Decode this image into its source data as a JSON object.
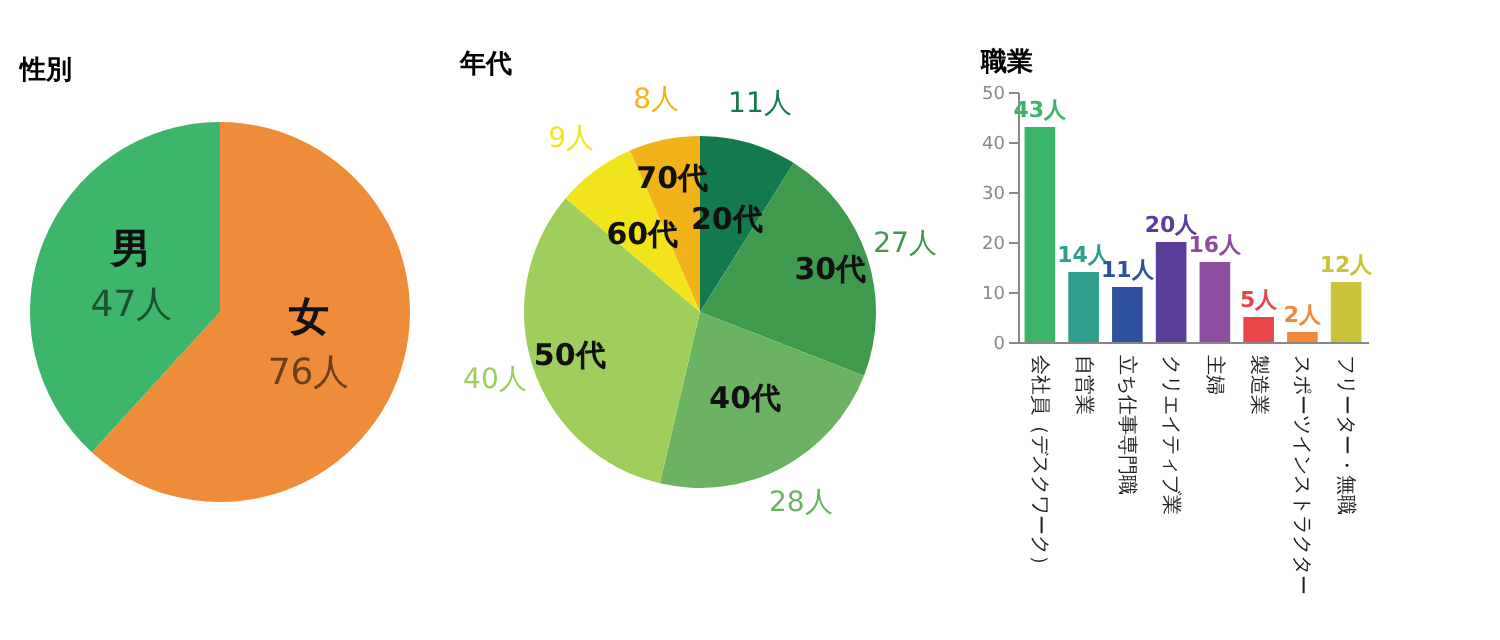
{
  "chart_data": [
    {
      "type": "pie",
      "title": "性別",
      "categories": [
        "女",
        "男"
      ],
      "values": [
        76,
        47
      ],
      "colors": [
        "#ef8c3a",
        "#3db56a"
      ],
      "value_labels": [
        "76人",
        "47人"
      ]
    },
    {
      "type": "pie",
      "title": "年代",
      "categories": [
        "20代",
        "30代",
        "40代",
        "50代",
        "60代",
        "70代"
      ],
      "values": [
        11,
        27,
        28,
        40,
        9,
        8
      ],
      "colors": [
        "#137a4e",
        "#3f9a4e",
        "#6bb362",
        "#9fce5c",
        "#f2e41b",
        "#f2b31a"
      ],
      "value_labels": [
        "11人",
        "27人",
        "28人",
        "40人",
        "9人",
        "8人"
      ]
    },
    {
      "type": "bar",
      "title": "職業",
      "categories": [
        "会社員（デスクワーク）",
        "自営業",
        "立ち仕事専門職",
        "クリエイティブ業",
        "主婦",
        "製造業",
        "スポーツインストラクター",
        "フリーター・無職"
      ],
      "values": [
        43,
        14,
        11,
        20,
        16,
        5,
        2,
        12
      ],
      "colors": [
        "#3cb469",
        "#2e9e8f",
        "#2f4f9f",
        "#5b3e9a",
        "#8e4c9e",
        "#e8454a",
        "#f08a3a",
        "#c9c43c"
      ],
      "value_labels": [
        "43人",
        "14人",
        "11人",
        "20人",
        "16人",
        "5人",
        "2人",
        "12人"
      ],
      "ylim": [
        0,
        50
      ],
      "yticks": [
        0,
        10,
        20,
        30,
        40,
        50
      ],
      "grid": false
    }
  ]
}
